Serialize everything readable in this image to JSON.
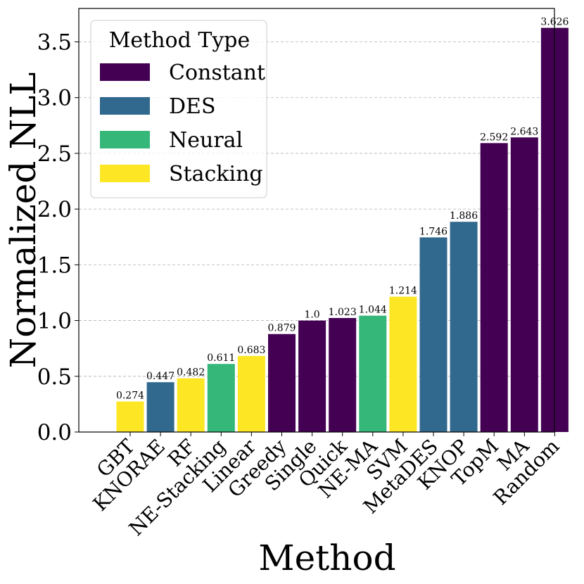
{
  "chart_data": {
    "type": "bar",
    "xlabel": "Method",
    "ylabel": "Normalized NLL",
    "ylim": [
      0,
      3.8
    ],
    "yticks": [
      "0.0",
      "0.5",
      "1.0",
      "1.5",
      "2.0",
      "2.5",
      "3.0",
      "3.5"
    ],
    "grid": "horizontal dashed",
    "legend": {
      "title": "Method Type",
      "placement": "top-left",
      "entries": [
        {
          "name": "Constant",
          "color": "#440154"
        },
        {
          "name": "DES",
          "color": "#31688e"
        },
        {
          "name": "Neural",
          "color": "#35b779"
        },
        {
          "name": "Stacking",
          "color": "#fde725"
        }
      ]
    },
    "categories": [
      "GBT",
      "KNORAE",
      "RF",
      "NE-Stacking",
      "Linear",
      "Greedy",
      "Single",
      "Quick",
      "NE-MA",
      "SVM",
      "MetaDES",
      "KNOP",
      "TopM",
      "MA",
      "Random"
    ],
    "values": [
      0.274,
      0.447,
      0.482,
      0.611,
      0.683,
      0.879,
      1.0,
      1.023,
      1.044,
      1.214,
      1.746,
      1.886,
      2.592,
      2.643,
      3.626
    ],
    "value_labels": [
      "0.274",
      "0.447",
      "0.482",
      "0.611",
      "0.683",
      "0.879",
      "1.0",
      "1.023",
      "1.044",
      "1.214",
      "1.746",
      "1.886",
      "2.592",
      "2.643",
      "3.626"
    ],
    "types": [
      "Stacking",
      "DES",
      "Stacking",
      "Neural",
      "Stacking",
      "Constant",
      "Constant",
      "Constant",
      "Neural",
      "Stacking",
      "DES",
      "DES",
      "Constant",
      "Constant",
      "Constant"
    ]
  }
}
